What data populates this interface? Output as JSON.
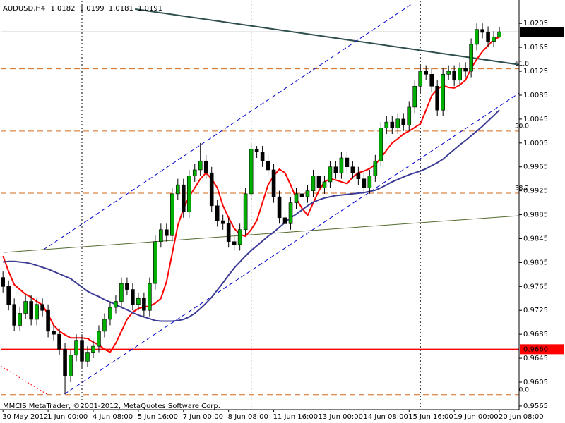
{
  "chart_data": {
    "type": "candlestick",
    "symbol": "AUDUSD,H4",
    "copyright": "MMCIS MetaTrader, ©2001-2012, MetaQuotes Software Corp.",
    "categories": [
      "30 May 2012",
      null,
      null,
      null,
      null,
      null,
      null,
      null,
      "1 Jun 00:00",
      null,
      null,
      null,
      null,
      null,
      null,
      null,
      "4 Jun 08:00",
      null,
      null,
      null,
      null,
      null,
      null,
      null,
      "5 Jun 16:00",
      null,
      null,
      null,
      null,
      null,
      null,
      null,
      "7 Jun 00:00",
      null,
      null,
      null,
      null,
      null,
      null,
      null,
      "8 Jun 08:00",
      null,
      null,
      null,
      null,
      null,
      null,
      null,
      "11 Jun 16:00",
      null,
      null,
      null,
      null,
      null,
      null,
      null,
      "13 Jun 00:00",
      null,
      null,
      null,
      null,
      null,
      null,
      null,
      "14 Jun 08:00",
      null,
      null,
      null,
      null,
      null,
      null,
      null,
      "15 Jun 16:00",
      null,
      null,
      null,
      null,
      null,
      null,
      null,
      "19 Jun 00:00",
      null,
      null,
      null,
      null,
      null,
      null,
      null,
      "20 Jun 08:00"
    ],
    "open": [
      0.978,
      0.9765,
      0.9735,
      0.97,
      0.972,
      0.974,
      0.971,
      0.9735,
      0.9725,
      0.969,
      0.9685,
      0.966,
      0.9615,
      0.965,
      0.9675,
      0.964,
      0.9655,
      0.9665,
      0.969,
      0.971,
      0.973,
      0.974,
      0.977,
      0.976,
      0.9735,
      0.9745,
      0.9725,
      0.977,
      0.984,
      0.986,
      0.985,
      0.992,
      0.9935,
      0.989,
      0.995,
      0.996,
      0.9975,
      0.9955,
      0.99,
      0.9875,
      0.987,
      0.984,
      0.9835,
      0.986,
      0.992,
      0.9995,
      0.999,
      0.9975,
      0.996,
      0.9915,
      0.988,
      0.987,
      0.9905,
      0.992,
      0.9915,
      0.9925,
      0.995,
      0.993,
      0.994,
      0.9965,
      0.9955,
      0.998,
      0.9965,
      0.9955,
      0.9945,
      0.993,
      0.995,
      0.9975,
      1.003,
      1.004,
      1.003,
      1.0045,
      1.0035,
      1.0065,
      1.01,
      1.0125,
      1.012,
      1.01,
      1.006,
      1.012,
      1.0125,
      1.011,
      1.013,
      1.0125,
      1.017,
      1.0195,
      1.019,
      1.0175,
      1.0182
    ],
    "high": [
      0.979,
      0.9775,
      0.9745,
      0.973,
      0.975,
      0.975,
      0.9745,
      0.9745,
      0.9735,
      0.97,
      0.9695,
      0.967,
      0.966,
      0.9685,
      0.9685,
      0.9665,
      0.9675,
      0.97,
      0.972,
      0.974,
      0.975,
      0.978,
      0.978,
      0.977,
      0.9755,
      0.9755,
      0.978,
      0.985,
      0.987,
      0.987,
      0.993,
      0.9945,
      0.9945,
      0.996,
      0.997,
      1.0005,
      0.9985,
      0.9965,
      0.991,
      0.9885,
      0.988,
      0.985,
      0.987,
      0.993,
      1.0005,
      1.0,
      1.0,
      0.9985,
      0.997,
      0.9925,
      0.989,
      0.9915,
      0.993,
      0.993,
      0.9935,
      0.996,
      0.996,
      0.995,
      0.9975,
      0.9975,
      0.999,
      0.999,
      0.9975,
      0.9965,
      0.9955,
      0.996,
      0.9985,
      1.004,
      1.005,
      1.005,
      1.0055,
      1.0055,
      1.0075,
      1.011,
      1.0135,
      1.0135,
      1.013,
      1.011,
      1.013,
      1.0135,
      1.0135,
      1.014,
      1.014,
      1.018,
      1.0205,
      1.0205,
      1.02,
      1.0192,
      1.0199
    ],
    "low": [
      0.9755,
      0.9725,
      0.969,
      0.969,
      0.971,
      0.97,
      0.97,
      0.9715,
      0.968,
      0.9675,
      0.965,
      0.9585,
      0.9605,
      0.964,
      0.963,
      0.963,
      0.9645,
      0.9655,
      0.968,
      0.97,
      0.972,
      0.973,
      0.975,
      0.9725,
      0.9725,
      0.9715,
      0.9715,
      0.976,
      0.983,
      0.984,
      0.984,
      0.991,
      0.988,
      0.988,
      0.994,
      0.995,
      0.9945,
      0.989,
      0.9865,
      0.986,
      0.983,
      0.9825,
      0.9825,
      0.985,
      0.991,
      0.998,
      0.9965,
      0.995,
      0.9905,
      0.987,
      0.986,
      0.986,
      0.9895,
      0.9905,
      0.9905,
      0.9915,
      0.992,
      0.992,
      0.993,
      0.9945,
      0.9945,
      0.9955,
      0.9945,
      0.9935,
      0.992,
      0.992,
      0.994,
      0.9965,
      1.002,
      1.002,
      1.002,
      1.0025,
      1.0025,
      1.0055,
      1.009,
      1.011,
      1.009,
      1.005,
      1.005,
      1.011,
      1.01,
      1.01,
      1.0115,
      1.0115,
      1.016,
      1.018,
      1.0165,
      1.0165,
      1.0181
    ],
    "close": [
      0.9765,
      0.9735,
      0.97,
      0.972,
      0.974,
      0.971,
      0.9735,
      0.9725,
      0.969,
      0.9685,
      0.966,
      0.9615,
      0.965,
      0.9675,
      0.964,
      0.9655,
      0.9665,
      0.969,
      0.971,
      0.973,
      0.974,
      0.977,
      0.976,
      0.9735,
      0.9745,
      0.9725,
      0.977,
      0.984,
      0.986,
      0.985,
      0.992,
      0.9935,
      0.989,
      0.995,
      0.996,
      0.9975,
      0.9955,
      0.99,
      0.9875,
      0.987,
      0.984,
      0.9835,
      0.986,
      0.992,
      0.9995,
      0.999,
      0.9975,
      0.996,
      0.9915,
      0.988,
      0.987,
      0.9905,
      0.992,
      0.9915,
      0.9925,
      0.995,
      0.993,
      0.994,
      0.9965,
      0.9955,
      0.998,
      0.9965,
      0.9955,
      0.9945,
      0.993,
      0.995,
      0.9975,
      1.003,
      1.004,
      1.003,
      1.0045,
      1.0035,
      1.0065,
      1.01,
      1.0125,
      1.012,
      1.01,
      1.006,
      1.012,
      1.0125,
      1.011,
      1.013,
      1.0125,
      1.017,
      1.0195,
      1.019,
      1.0175,
      1.0182,
      1.0191
    ],
    "up_color": "#00b000",
    "down_color": "#000000",
    "indicators": [
      {
        "color": "#ff0000",
        "values": [
          0.9816,
          0.979,
          0.9768,
          0.976,
          0.9752,
          0.9747,
          0.974,
          0.9734,
          0.9718,
          0.97,
          0.969,
          0.9684,
          0.9679,
          0.9679,
          0.9679,
          0.9678,
          0.9672,
          0.9667,
          0.966,
          0.9655,
          0.967,
          0.969,
          0.971,
          0.9722,
          0.9728,
          0.9731,
          0.9732,
          0.9737,
          0.9745,
          0.9773,
          0.982,
          0.9867,
          0.9895,
          0.9915,
          0.993,
          0.9945,
          0.9955,
          0.9945,
          0.993,
          0.99,
          0.988,
          0.9862,
          0.9852,
          0.9849,
          0.986,
          0.9875,
          0.9905,
          0.9935,
          0.995,
          0.9961,
          0.9955,
          0.9935,
          0.9912,
          0.9896,
          0.9884,
          0.9905,
          0.9925,
          0.994,
          0.9945,
          0.9943,
          0.994,
          0.9937,
          0.9948,
          0.9955,
          0.9958,
          0.9962,
          0.9969,
          0.998,
          0.9993,
          1.0005,
          1.0012,
          1.002,
          1.0025,
          1.0031,
          1.0037,
          1.006,
          1.0084,
          1.0095,
          1.0101,
          1.0098,
          1.0097,
          1.0102,
          1.011,
          1.013,
          1.0145,
          1.0158,
          1.0168,
          1.0178,
          1.0182
        ]
      },
      {
        "color": "#3c3c96",
        "values": [
          0.9806,
          0.9807,
          0.9807,
          0.9806,
          0.9805,
          0.9803,
          0.98,
          0.9797,
          0.9794,
          0.979,
          0.9786,
          0.9782,
          0.9778,
          0.9771,
          0.9764,
          0.9757,
          0.9752,
          0.9748,
          0.9743,
          0.9739,
          0.9735,
          0.973,
          0.9726,
          0.9721,
          0.9717,
          0.9714,
          0.9711,
          0.9708,
          0.9707,
          0.9707,
          0.9707,
          0.9708,
          0.971,
          0.9714,
          0.972,
          0.9728,
          0.9737,
          0.9747,
          0.9759,
          0.9771,
          0.9784,
          0.9796,
          0.9806,
          0.9816,
          0.9825,
          0.9833,
          0.9841,
          0.9849,
          0.9856,
          0.9864,
          0.9872,
          0.988,
          0.9886,
          0.9893,
          0.99,
          0.9906,
          0.991,
          0.9913,
          0.9915,
          0.9917,
          0.9918,
          0.9919,
          0.992,
          0.9921,
          0.9922,
          0.9924,
          0.9926,
          0.993,
          0.9935,
          0.994,
          0.9944,
          0.9948,
          0.9952,
          0.9955,
          0.9958,
          0.9962,
          0.9967,
          0.9972,
          0.9978,
          0.9986,
          0.9994,
          1.0002,
          1.0009,
          1.0017,
          1.0025,
          1.0033,
          1.0042,
          1.0051,
          1.006
        ]
      }
    ],
    "trendlines": [
      {
        "color": "#2f4f4f",
        "style": "solid",
        "width": 2,
        "points": [
          [
            23.4,
            1.0229
          ],
          [
            99.6,
            1.0125
          ]
        ]
      },
      {
        "color": "#0000cd",
        "style": "dashed",
        "width": 1,
        "points": [
          [
            7.1,
            0.9826
          ],
          [
            72.4,
            1.0237
          ]
        ]
      },
      {
        "color": "#0000cd",
        "style": "dashed",
        "width": 1,
        "points": [
          [
            10.9,
            0.9585
          ],
          [
            94.0,
            1.0104
          ]
        ]
      },
      {
        "color": "#556b2f",
        "style": "solid",
        "width": 1,
        "points": [
          [
            0.25,
            0.9822
          ],
          [
            98.4,
            0.9888
          ]
        ]
      },
      {
        "color": "#ff0000",
        "style": "dotted",
        "width": 1,
        "points": [
          [
            -0.4,
            0.9632
          ],
          [
            7.75,
            0.9585
          ]
        ]
      }
    ],
    "fibo": {
      "color": "#d2691e",
      "levels": [
        {
          "label": "61.8",
          "value": 1.0129
        },
        {
          "label": "50.0",
          "value": 1.0025
        },
        {
          "label": "38.2",
          "value": 0.9921
        },
        {
          "label": "0.0",
          "value": 0.9584
        }
      ]
    },
    "hlines": [
      {
        "value": 0.966,
        "label": "0.9660",
        "color": "#ff0000"
      }
    ],
    "bid_color": "#c0c0c0",
    "period_separators": [
      14,
      44,
      74
    ],
    "xlim": [
      -0.4,
      91.5
    ],
    "ylim": [
      0.9559,
      1.0243
    ],
    "yticks": [
      1.0205,
      1.0165,
      1.0125,
      1.0085,
      1.0045,
      1.0005,
      0.9965,
      0.9925,
      0.9885,
      0.9845,
      0.9805,
      0.9765,
      0.9725,
      0.9685,
      0.9645,
      0.9605,
      0.9565
    ],
    "grid": false
  }
}
